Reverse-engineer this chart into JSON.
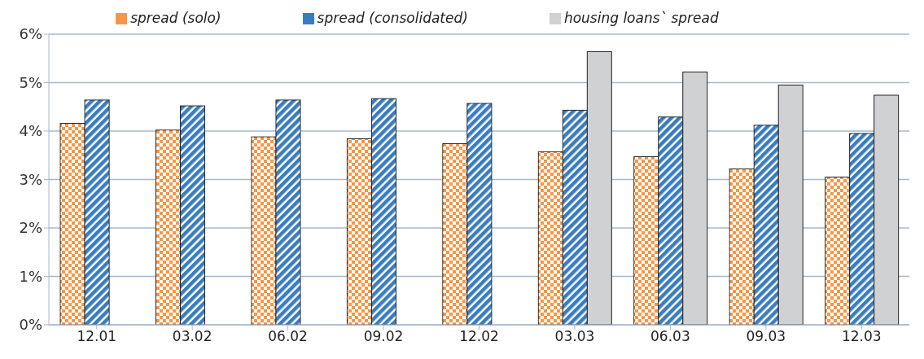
{
  "chart_data": {
    "type": "bar",
    "categories": [
      "12.01",
      "03.02",
      "06.02",
      "09.02",
      "12.02",
      "03.03",
      "06.03",
      "09.03",
      "12.03"
    ],
    "series": [
      {
        "name": "spread (solo)",
        "color": "#f79646",
        "values": [
          4.16,
          4.02,
          3.88,
          3.84,
          3.74,
          3.57,
          3.47,
          3.22,
          3.05
        ]
      },
      {
        "name": "spread (consolidated)",
        "color": "#3a7dbf",
        "values": [
          4.64,
          4.52,
          4.64,
          4.67,
          4.57,
          4.43,
          4.29,
          4.12,
          3.95
        ]
      },
      {
        "name": "housing loans` spread",
        "color": "#d0d1d3",
        "values": [
          null,
          null,
          null,
          null,
          null,
          5.64,
          5.22,
          4.95,
          4.74
        ]
      }
    ],
    "ylim": [
      0,
      6
    ],
    "yticks": [
      {
        "value": 0,
        "label": "0%"
      },
      {
        "value": 1,
        "label": "1%"
      },
      {
        "value": 2,
        "label": "2%"
      },
      {
        "value": 3,
        "label": "3%"
      },
      {
        "value": 4,
        "label": "4%"
      },
      {
        "value": 5,
        "label": "5%"
      },
      {
        "value": 6,
        "label": "6%"
      }
    ],
    "grid": "y",
    "legend": "top"
  }
}
